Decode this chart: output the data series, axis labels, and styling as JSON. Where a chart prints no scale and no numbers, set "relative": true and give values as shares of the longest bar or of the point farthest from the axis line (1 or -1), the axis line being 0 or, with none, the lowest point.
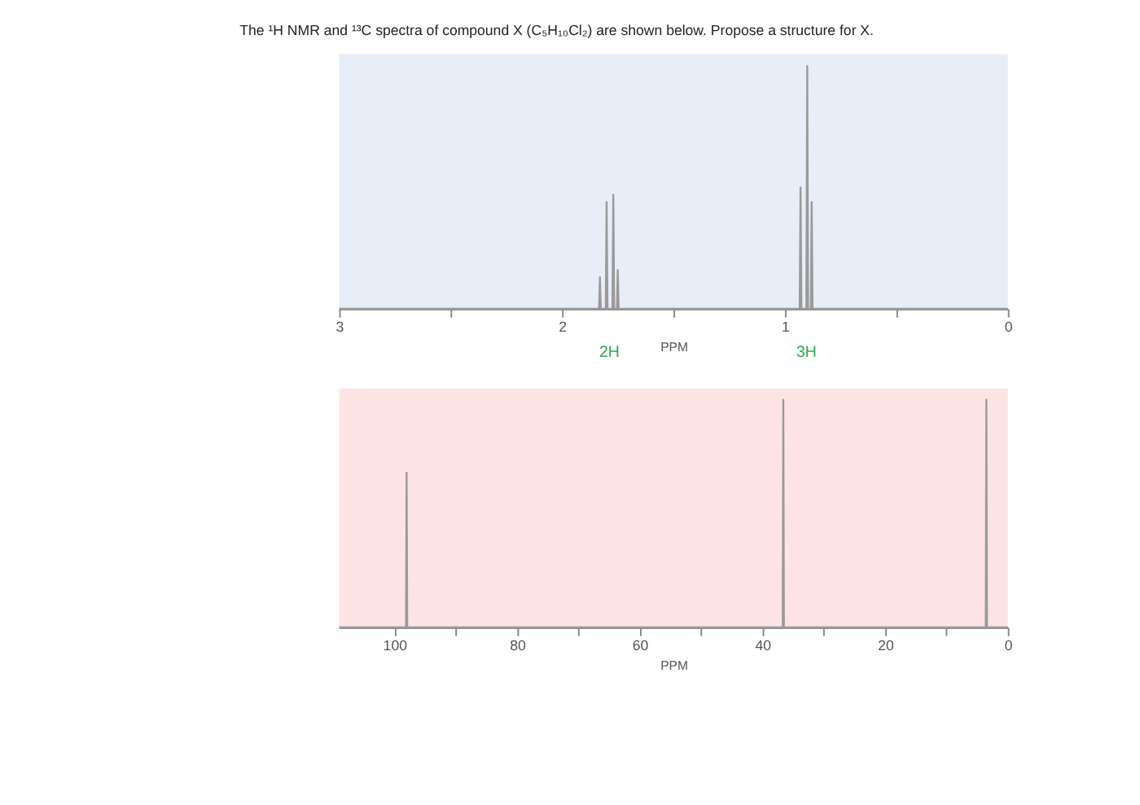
{
  "chart_data": [
    {
      "type": "line",
      "title": "The ¹H NMR and ¹³C spectra of compound X (C₅H₁₀Cl₂) are shown below. Propose a structure for X.",
      "relative": true,
      "xlabel": "PPM",
      "xlim": [
        3,
        0
      ],
      "xticks": [
        3,
        {
          "value": 2.5,
          "label": null
        },
        2,
        {
          "value": 1.5,
          "label": null
        },
        1,
        {
          "value": 0.5,
          "label": null
        },
        0
      ],
      "x": [
        3,
        1.834,
        1.83,
        1.826,
        1.804,
        1.8,
        1.796,
        1.774,
        1.77,
        1.766,
        1.754,
        1.75,
        1.746,
        0.934,
        0.93,
        0.926,
        0.904,
        0.9,
        0.896,
        0.884,
        0.88,
        0.876,
        0
      ],
      "series": [
        {
          "color": "#9a9a9a",
          "values": [
            0,
            0,
            0.13,
            0,
            0,
            0.44,
            0,
            0,
            0.47,
            0,
            0,
            0.16,
            0,
            0,
            0.5,
            0,
            0,
            1,
            0,
            0,
            0.44,
            0,
            0
          ]
        }
      ],
      "annotations": [
        "2H",
        "3H"
      ]
    },
    {
      "type": "line",
      "relative": true,
      "xlabel": "PPM",
      "xlim": [
        109,
        0
      ],
      "xticks": [
        100,
        {
          "value": 90,
          "label": null
        },
        80,
        {
          "value": 70,
          "label": null
        },
        60,
        {
          "value": 50,
          "label": null
        },
        40,
        {
          "value": 30,
          "label": null
        },
        20,
        {
          "value": 10,
          "label": null
        },
        0
      ],
      "x": [
        109,
        98.1,
        98,
        97.9,
        36.7,
        36.6,
        36.5,
        3.6,
        3.5,
        3.4,
        0
      ],
      "series": [
        {
          "color": "#9a9a9a",
          "values": [
            0,
            0,
            0.68,
            0,
            0,
            1,
            0,
            0,
            1,
            0,
            0
          ]
        }
      ]
    }
  ]
}
